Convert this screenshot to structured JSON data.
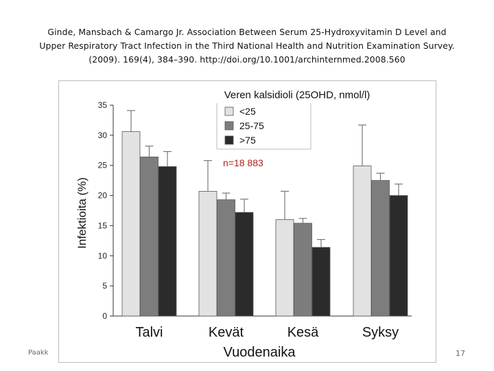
{
  "citation": {
    "line1": "Ginde, Mansbach & Camargo Jr. Association Between Serum 25-Hydroxyvitamin D Level and",
    "line2": "Upper Respiratory Tract Infection in the Third National Health and Nutrition Examination Survey.",
    "line3": "(2009). 169(4), 384–390. http://doi.org/10.1001/archinternmed.2008.560"
  },
  "footer": {
    "left_text": "Paakk",
    "page_number": "17"
  },
  "chart_data": {
    "type": "bar",
    "categories": [
      "Talvi",
      "Kevät",
      "Kesä",
      "Syksy"
    ],
    "series": [
      {
        "name": "<25",
        "color": "#e2e2e2",
        "values": [
          30.6,
          20.7,
          16.0,
          24.9
        ],
        "error_upper": [
          34.1,
          25.8,
          20.7,
          31.7
        ]
      },
      {
        "name": "25-75",
        "color": "#7d7d7d",
        "values": [
          26.4,
          19.3,
          15.4,
          22.5
        ],
        "error_upper": [
          28.2,
          20.4,
          16.2,
          23.7
        ]
      },
      {
        "name": ">75",
        "color": "#2b2b2b",
        "values": [
          24.8,
          17.2,
          11.4,
          20.0
        ],
        "error_upper": [
          27.3,
          19.4,
          12.7,
          21.9
        ]
      }
    ],
    "ylabel": "Infektioita (%)",
    "xlabel": "Vuodenaika",
    "ylim": [
      0,
      35
    ],
    "yticks": [
      "0",
      "5",
      "10",
      "15",
      "20",
      "25",
      "30",
      "35"
    ],
    "legend_title": "Veren kalsidioli (25OHD, nmol/l)",
    "legend_position": "top-center",
    "annotation": "n=18 883",
    "annotation_color": "#b22222"
  }
}
